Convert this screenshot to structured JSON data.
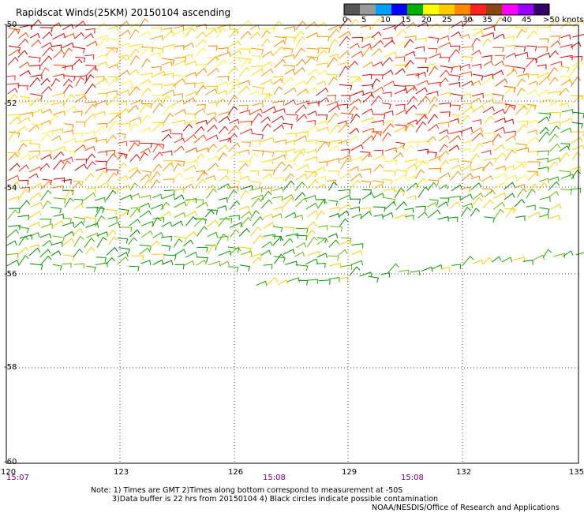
{
  "title": "Rapidscat Winds(25KM) 20150104 ascending",
  "legend": {
    "labels": [
      "0",
      "5",
      "10",
      "15",
      "20",
      "25",
      "30",
      "35",
      "40",
      "45",
      ">50 knots"
    ],
    "colors": [
      "#555555",
      "#999999",
      "#00a0ff",
      "#0000ff",
      "#00b000",
      "#ffff00",
      "#ffcc00",
      "#ff8800",
      "#ff2020",
      "#8b4513",
      "#ff00ff",
      "#9900ff",
      "#330066"
    ]
  },
  "axes": {
    "lat_labels": [
      "-50",
      "-52",
      "-54",
      "-56",
      "-58",
      "-60"
    ],
    "lon_labels": [
      "120",
      "123",
      "126",
      "129",
      "132",
      "135"
    ]
  },
  "times": [
    "15:07",
    "15:08",
    "15:08"
  ],
  "notes": {
    "line1": "Note: 1) Times are GMT 2)Times along bottom correspond to measurement at -50S",
    "line2": "3)Data buffer is 22 hrs from 20150104 4) Black circles indicate possible contamination",
    "credit": "NOAA/NESDIS/Office of Research and Applications"
  }
}
